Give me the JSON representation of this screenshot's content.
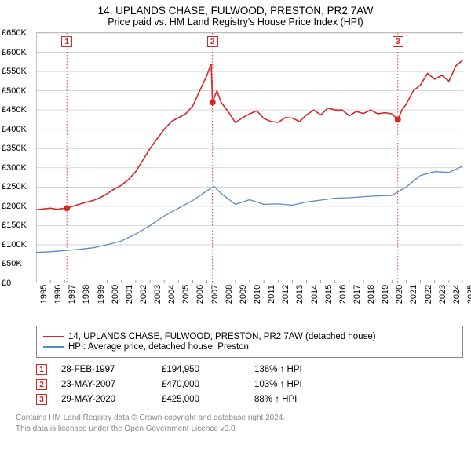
{
  "title": "14, UPLANDS CHASE, FULWOOD, PRESTON, PR2 7AW",
  "subtitle": "Price paid vs. HM Land Registry's House Price Index (HPI)",
  "chart": {
    "type": "line",
    "background_color": "#ffffff",
    "grid_color": "#cccccc",
    "marker_border_color": "#d62728",
    "vline_color": "#d62728",
    "ylim": [
      0,
      650000
    ],
    "ytick_step": 50000,
    "ytick_labels": [
      "£0",
      "£50K",
      "£100K",
      "£150K",
      "£200K",
      "£250K",
      "£300K",
      "£350K",
      "£400K",
      "£450K",
      "£500K",
      "£550K",
      "£600K",
      "£650K"
    ],
    "x_start_year": 1995,
    "x_end_year": 2025,
    "x_years": [
      1995,
      1996,
      1997,
      1998,
      1999,
      2000,
      2001,
      2002,
      2003,
      2004,
      2005,
      2006,
      2007,
      2008,
      2009,
      2010,
      2011,
      2012,
      2013,
      2014,
      2015,
      2016,
      2017,
      2018,
      2019,
      2020,
      2021,
      2022,
      2023,
      2024,
      2025
    ],
    "series": [
      {
        "name": "property",
        "label": "14, UPLANDS CHASE, FULWOOD, PRESTON, PR2 7AW (detached house)",
        "color": "#d62728",
        "line_width": 1.6,
        "points": [
          [
            1995.0,
            191000
          ],
          [
            1995.5,
            193000
          ],
          [
            1996.0,
            195000
          ],
          [
            1996.5,
            192000
          ],
          [
            1997.0,
            195000
          ],
          [
            1997.16,
            194950
          ],
          [
            1997.5,
            199000
          ],
          [
            1998.0,
            205000
          ],
          [
            1998.5,
            210000
          ],
          [
            1999.0,
            215000
          ],
          [
            1999.5,
            222000
          ],
          [
            2000.0,
            233000
          ],
          [
            2000.5,
            245000
          ],
          [
            2001.0,
            255000
          ],
          [
            2001.5,
            270000
          ],
          [
            2002.0,
            290000
          ],
          [
            2002.5,
            320000
          ],
          [
            2003.0,
            350000
          ],
          [
            2003.5,
            375000
          ],
          [
            2004.0,
            400000
          ],
          [
            2004.5,
            420000
          ],
          [
            2005.0,
            430000
          ],
          [
            2005.5,
            440000
          ],
          [
            2006.0,
            460000
          ],
          [
            2006.5,
            500000
          ],
          [
            2007.0,
            540000
          ],
          [
            2007.3,
            570000
          ],
          [
            2007.39,
            470000
          ],
          [
            2007.7,
            500000
          ],
          [
            2008.0,
            470000
          ],
          [
            2008.5,
            445000
          ],
          [
            2009.0,
            417000
          ],
          [
            2009.5,
            430000
          ],
          [
            2010.0,
            440000
          ],
          [
            2010.5,
            448000
          ],
          [
            2011.0,
            428000
          ],
          [
            2011.5,
            420000
          ],
          [
            2012.0,
            418000
          ],
          [
            2012.5,
            430000
          ],
          [
            2013.0,
            429000
          ],
          [
            2013.5,
            420000
          ],
          [
            2014.0,
            437000
          ],
          [
            2014.5,
            450000
          ],
          [
            2015.0,
            437000
          ],
          [
            2015.5,
            455000
          ],
          [
            2016.0,
            450000
          ],
          [
            2016.5,
            450000
          ],
          [
            2017.0,
            435000
          ],
          [
            2017.5,
            446000
          ],
          [
            2018.0,
            441000
          ],
          [
            2018.5,
            450000
          ],
          [
            2019.0,
            440000
          ],
          [
            2019.5,
            443000
          ],
          [
            2020.0,
            440000
          ],
          [
            2020.41,
            425000
          ],
          [
            2020.7,
            450000
          ],
          [
            2021.0,
            465000
          ],
          [
            2021.5,
            500000
          ],
          [
            2022.0,
            515000
          ],
          [
            2022.5,
            545000
          ],
          [
            2023.0,
            530000
          ],
          [
            2023.5,
            540000
          ],
          [
            2024.0,
            525000
          ],
          [
            2024.5,
            565000
          ],
          [
            2025.0,
            580000
          ]
        ]
      },
      {
        "name": "hpi",
        "label": "HPI: Average price, detached house, Preston",
        "color": "#5a8ac6",
        "line_width": 1.3,
        "points": [
          [
            1995.0,
            80000
          ],
          [
            1996.0,
            82000
          ],
          [
            1997.0,
            85000
          ],
          [
            1998.0,
            88000
          ],
          [
            1999.0,
            92000
          ],
          [
            2000.0,
            100000
          ],
          [
            2001.0,
            110000
          ],
          [
            2002.0,
            128000
          ],
          [
            2003.0,
            150000
          ],
          [
            2004.0,
            175000
          ],
          [
            2005.0,
            195000
          ],
          [
            2006.0,
            215000
          ],
          [
            2007.0,
            240000
          ],
          [
            2007.5,
            252000
          ],
          [
            2008.0,
            233000
          ],
          [
            2009.0,
            205000
          ],
          [
            2010.0,
            217000
          ],
          [
            2011.0,
            205000
          ],
          [
            2012.0,
            206000
          ],
          [
            2013.0,
            203000
          ],
          [
            2014.0,
            211000
          ],
          [
            2015.0,
            216000
          ],
          [
            2016.0,
            221000
          ],
          [
            2017.0,
            222000
          ],
          [
            2018.0,
            225000
          ],
          [
            2019.0,
            227000
          ],
          [
            2020.0,
            228000
          ],
          [
            2021.0,
            250000
          ],
          [
            2022.0,
            280000
          ],
          [
            2023.0,
            290000
          ],
          [
            2024.0,
            288000
          ],
          [
            2024.7,
            300000
          ],
          [
            2025.0,
            305000
          ]
        ]
      }
    ],
    "sale_markers": [
      {
        "n": "1",
        "x": 1997.16,
        "y": 194950
      },
      {
        "n": "2",
        "x": 2007.39,
        "y": 470000
      },
      {
        "n": "3",
        "x": 2020.41,
        "y": 425000
      }
    ]
  },
  "legend": {
    "rows": [
      {
        "color": "#d62728",
        "label_path": "chart.series.0.label"
      },
      {
        "color": "#5a8ac6",
        "label_path": "chart.series.1.label"
      }
    ]
  },
  "sales": [
    {
      "n": "1",
      "date": "28-FEB-1997",
      "price": "£194,950",
      "pct": "136% ↑ HPI"
    },
    {
      "n": "2",
      "date": "23-MAY-2007",
      "price": "£470,000",
      "pct": "103% ↑ HPI"
    },
    {
      "n": "3",
      "date": "29-MAY-2020",
      "price": "£425,000",
      "pct": "88% ↑ HPI"
    }
  ],
  "footnote_lines": [
    "Contains HM Land Registry data © Crown copyright and database right 2024.",
    "This data is licensed under the Open Government Licence v3.0."
  ],
  "typography": {
    "title_fontsize": 13.5,
    "subtitle_fontsize": 12.5,
    "axis_fontsize": 11,
    "legend_fontsize": 11.5,
    "footnote_fontsize": 10
  }
}
